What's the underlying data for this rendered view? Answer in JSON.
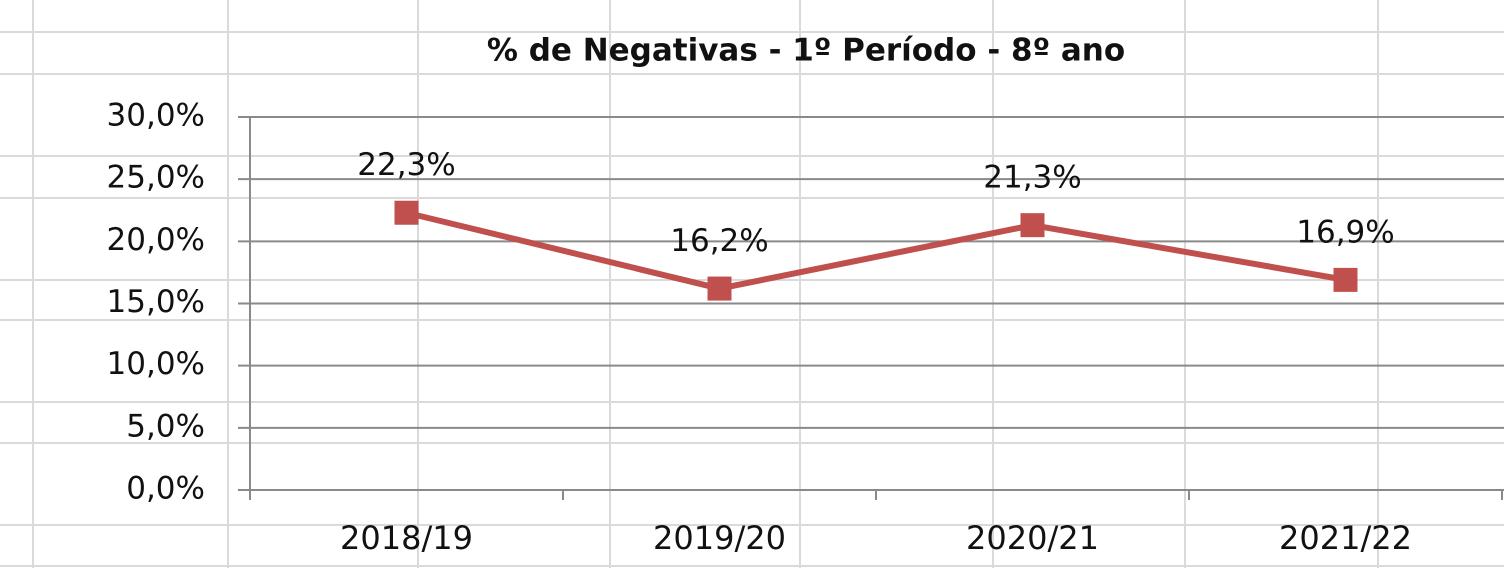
{
  "chart_data": {
    "type": "line",
    "title": "% de Negativas - 1º Período - 8º ano",
    "categories": [
      "2018/19",
      "2019/20",
      "2020/21",
      "2021/22"
    ],
    "series": [
      {
        "name": "% de Negativas",
        "color": "#c0504d",
        "values": [
          22.3,
          16.2,
          21.3,
          16.9
        ],
        "value_labels": [
          "22,3%",
          "16,2%",
          "21,3%",
          "16,9%"
        ]
      }
    ],
    "ylim": [
      0,
      30
    ],
    "yticks": [
      {
        "value": 0,
        "label": "0,0%"
      },
      {
        "value": 5,
        "label": "5,0%"
      },
      {
        "value": 10,
        "label": "10,0%"
      },
      {
        "value": 15,
        "label": "15,0%"
      },
      {
        "value": 20,
        "label": "20,0%"
      },
      {
        "value": 25,
        "label": "25,0%"
      },
      {
        "value": 30,
        "label": "30,0%"
      }
    ],
    "grid": true
  }
}
